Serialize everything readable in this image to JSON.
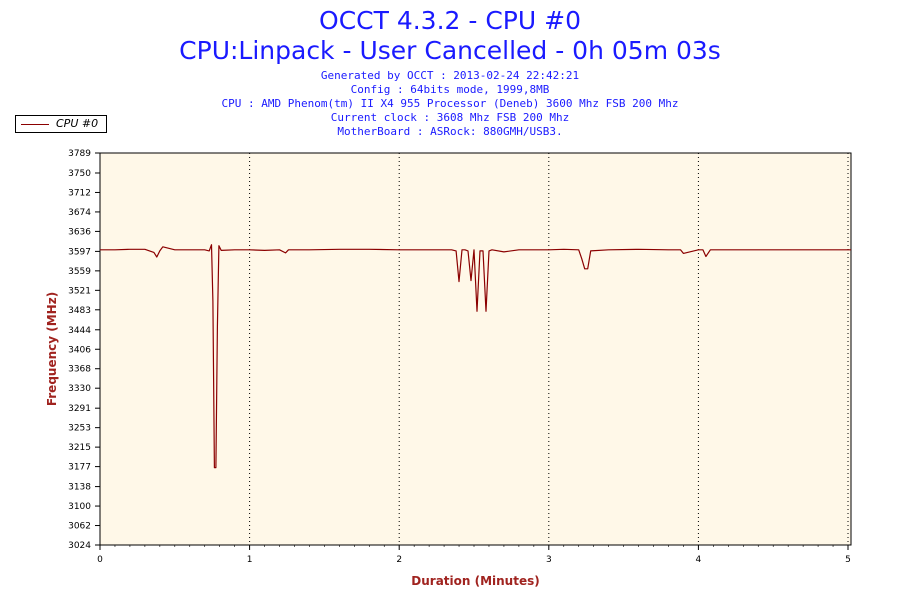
{
  "header": {
    "title_line1": "OCCT 4.3.2 - CPU #0",
    "title_line2": "CPU:Linpack - User Cancelled - 0h 05m 03s",
    "info_lines": [
      "Generated by OCCT : 2013-02-24 22:42:21",
      "Config : 64bits mode, 1999,8MB",
      "CPU : AMD Phenom(tm) II X4 955 Processor (Deneb) 3600 Mhz FSB 200 Mhz",
      "Current clock : 3608 Mhz FSB 200 Mhz",
      "MotherBoard : ASRock: 880GMH/USB3."
    ]
  },
  "colors": {
    "title": "#1a1aff",
    "plot_background": "#fff8e8",
    "series": "#8b0000",
    "axis_title": "#a0231f"
  },
  "chart_data": {
    "type": "line",
    "title": "OCCT 4.3.2 - CPU #0",
    "xlabel": "Duration (Minutes)",
    "ylabel": "Frequency (MHz)",
    "xlim": [
      0,
      5.02
    ],
    "ylim": [
      3024,
      3789
    ],
    "x_ticks": [
      "0",
      "1",
      "2",
      "3",
      "4",
      "5"
    ],
    "y_ticks": [
      "3789",
      "3750",
      "3712",
      "3674",
      "3636",
      "3597",
      "3559",
      "3521",
      "3483",
      "3444",
      "3406",
      "3368",
      "3330",
      "3291",
      "3253",
      "3215",
      "3177",
      "3138",
      "3100",
      "3062",
      "3024"
    ],
    "grid": "vertical-dotted",
    "legend": "top-left",
    "series": [
      {
        "name": "CPU #0",
        "x": [
          0,
          0.1,
          0.2,
          0.3,
          0.36,
          0.38,
          0.4,
          0.42,
          0.5,
          0.6,
          0.7,
          0.73,
          0.745,
          0.755,
          0.765,
          0.775,
          0.785,
          0.795,
          0.81,
          0.9,
          1.0,
          1.1,
          1.2,
          1.24,
          1.26,
          1.4,
          1.6,
          1.8,
          2.0,
          2.2,
          2.35,
          2.38,
          2.4,
          2.42,
          2.44,
          2.46,
          2.48,
          2.5,
          2.52,
          2.54,
          2.56,
          2.58,
          2.6,
          2.62,
          2.7,
          2.8,
          2.9,
          3.0,
          3.1,
          3.2,
          3.22,
          3.24,
          3.26,
          3.28,
          3.4,
          3.6,
          3.8,
          3.88,
          3.9,
          4.0,
          4.03,
          4.05,
          4.08,
          4.2,
          4.4,
          4.6,
          4.8,
          5.02
        ],
        "values": [
          3600,
          3600,
          3601,
          3601,
          3595,
          3586,
          3598,
          3606,
          3600,
          3600,
          3600,
          3598,
          3610,
          3500,
          3175,
          3175,
          3450,
          3608,
          3599,
          3600,
          3600,
          3599,
          3600,
          3594,
          3600,
          3600,
          3601,
          3601,
          3600,
          3600,
          3600,
          3598,
          3538,
          3600,
          3600,
          3598,
          3540,
          3600,
          3480,
          3598,
          3598,
          3480,
          3598,
          3600,
          3596,
          3600,
          3600,
          3600,
          3601,
          3600,
          3583,
          3563,
          3563,
          3598,
          3600,
          3601,
          3600,
          3600,
          3593,
          3600,
          3600,
          3587,
          3600,
          3600,
          3600,
          3600,
          3600,
          3600
        ]
      }
    ]
  }
}
